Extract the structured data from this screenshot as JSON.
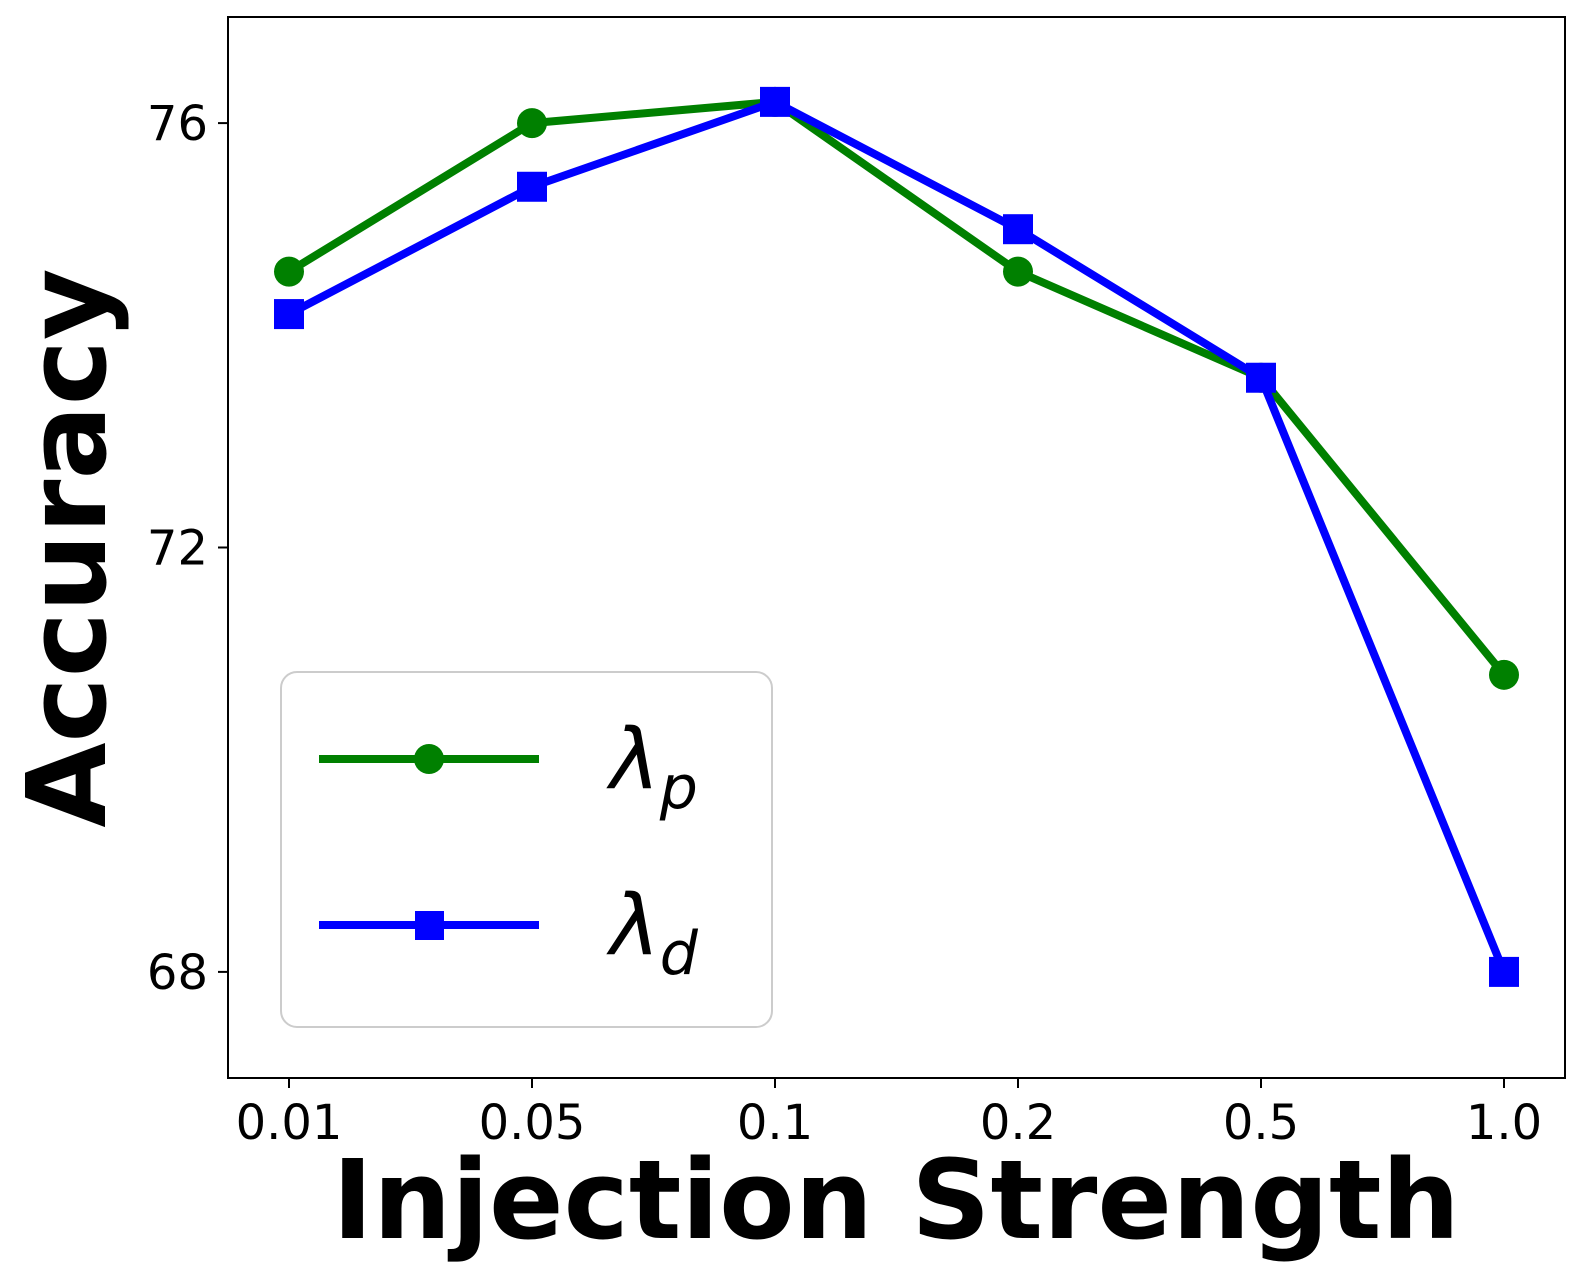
{
  "chart_data": {
    "type": "line",
    "title": "",
    "xlabel": "Injection Strength",
    "ylabel": "Accuracy",
    "categories": [
      "0.01",
      "0.05",
      "0.1",
      "0.2",
      "0.5",
      "1.0"
    ],
    "yticks": [
      68,
      72,
      76
    ],
    "ylim": [
      67.0,
      77.0
    ],
    "grid": false,
    "legend_position": "lower-left",
    "series": [
      {
        "name": "λp",
        "symbol": "λ",
        "subscript": "p",
        "color": "#008000",
        "marker": "circle",
        "values": [
          74.6,
          76.0,
          76.2,
          74.6,
          73.6,
          70.8
        ]
      },
      {
        "name": "λd",
        "symbol": "λ",
        "subscript": "d",
        "color": "#0000ff",
        "marker": "square",
        "values": [
          74.2,
          75.4,
          76.2,
          75.0,
          73.6,
          68.0
        ]
      }
    ]
  }
}
